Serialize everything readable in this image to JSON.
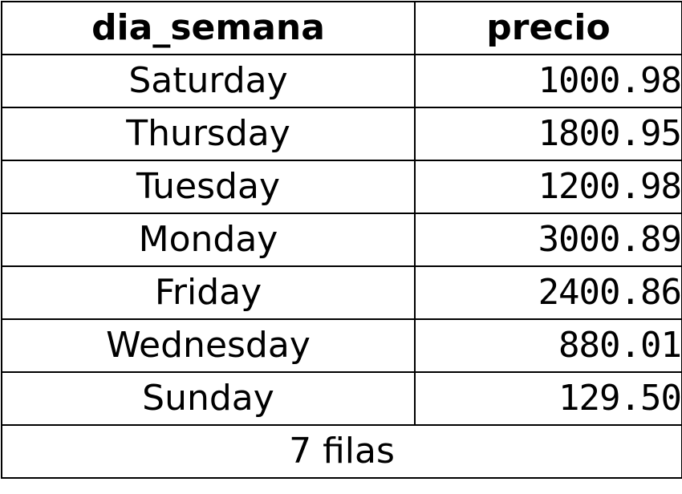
{
  "table": {
    "headers": [
      "dia_semana",
      "precio"
    ],
    "rows": [
      {
        "dia_semana": "Saturday",
        "precio": "1000.98"
      },
      {
        "dia_semana": "Thursday",
        "precio": "1800.95"
      },
      {
        "dia_semana": "Tuesday",
        "precio": "1200.98"
      },
      {
        "dia_semana": "Monday",
        "precio": "3000.89"
      },
      {
        "dia_semana": "Friday",
        "precio": "2400.86"
      },
      {
        "dia_semana": "Wednesday",
        "precio": "880.01"
      },
      {
        "dia_semana": "Sunday",
        "precio": "129.50"
      }
    ],
    "footer": "7 filas"
  }
}
